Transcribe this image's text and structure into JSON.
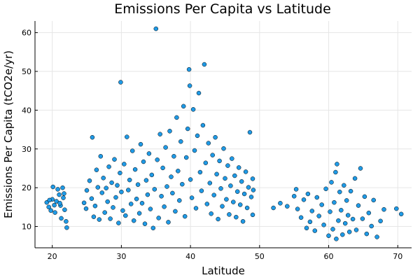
{
  "chart_data": {
    "type": "scatter",
    "title": "Emissions Per Capita vs Latitude",
    "xlabel": "Latitude",
    "ylabel": "Emissions Per Capita (tCO2e/yr)",
    "xlim": [
      17.5,
      72
    ],
    "ylim": [
      4.5,
      63
    ],
    "xticks": [
      20,
      30,
      40,
      50,
      60,
      70
    ],
    "yticks": [
      10,
      20,
      30,
      40,
      50,
      60
    ],
    "grid": true,
    "legend": "none",
    "point_color": "#1f9ae6",
    "series": [
      {
        "points": [
          [
            19.2,
            16.2
          ],
          [
            19.5,
            15.0
          ],
          [
            19.8,
            14.1
          ],
          [
            20.0,
            17.0
          ],
          [
            20.1,
            20.2
          ],
          [
            20.4,
            13.6
          ],
          [
            20.6,
            16.5
          ],
          [
            20.8,
            19.6
          ],
          [
            21.0,
            18.2
          ],
          [
            21.2,
            15.4
          ],
          [
            21.3,
            12.1
          ],
          [
            21.5,
            20.0
          ],
          [
            21.6,
            17.4
          ],
          [
            21.8,
            14.3
          ],
          [
            22.0,
            11.3
          ],
          [
            22.1,
            9.7
          ],
          [
            21.1,
            16.0
          ],
          [
            20.3,
            15.5
          ],
          [
            21.7,
            18.5
          ],
          [
            19.6,
            16.8
          ],
          [
            24.6,
            16.1
          ],
          [
            24.9,
            14.6
          ],
          [
            25.0,
            19.3
          ],
          [
            25.4,
            21.8
          ],
          [
            25.7,
            17.2
          ],
          [
            25.8,
            33.0
          ],
          [
            26.0,
            12.5
          ],
          [
            26.2,
            15.3
          ],
          [
            26.4,
            24.6
          ],
          [
            26.6,
            20.1
          ],
          [
            26.8,
            11.8
          ],
          [
            27.0,
            28.1
          ],
          [
            27.2,
            18.7
          ],
          [
            27.4,
            22.5
          ],
          [
            27.6,
            13.6
          ],
          [
            27.8,
            19.9
          ],
          [
            28.0,
            16.4
          ],
          [
            28.2,
            25.4
          ],
          [
            28.4,
            12.0
          ],
          [
            28.6,
            21.3
          ],
          [
            28.8,
            14.9
          ],
          [
            29.0,
            27.3
          ],
          [
            29.2,
            17.5
          ],
          [
            29.4,
            20.6
          ],
          [
            29.6,
            10.9
          ],
          [
            29.8,
            23.8
          ],
          [
            29.9,
            47.2
          ],
          [
            30.0,
            18.9
          ],
          [
            30.2,
            14.1
          ],
          [
            30.4,
            26.1
          ],
          [
            30.6,
            12.8
          ],
          [
            30.8,
            33.1
          ],
          [
            31.0,
            19.4
          ],
          [
            31.2,
            22.0
          ],
          [
            31.4,
            15.8
          ],
          [
            31.6,
            29.5
          ],
          [
            31.8,
            11.5
          ],
          [
            32.0,
            24.7
          ],
          [
            32.2,
            17.1
          ],
          [
            32.4,
            20.8
          ],
          [
            32.6,
            13.4
          ],
          [
            32.8,
            31.2
          ],
          [
            33.0,
            16.0
          ],
          [
            33.2,
            26.7
          ],
          [
            33.4,
            10.7
          ],
          [
            33.6,
            21.9
          ],
          [
            33.8,
            18.2
          ],
          [
            34.0,
            28.8
          ],
          [
            34.2,
            14.5
          ],
          [
            34.4,
            23.3
          ],
          [
            34.6,
            9.6
          ],
          [
            34.8,
            19.6
          ],
          [
            35.0,
            61.0
          ],
          [
            35.2,
            27.2
          ],
          [
            35.4,
            12.2
          ],
          [
            35.6,
            33.8
          ],
          [
            35.8,
            17.8
          ],
          [
            36.0,
            25.1
          ],
          [
            36.2,
            15.1
          ],
          [
            36.4,
            30.4
          ],
          [
            36.6,
            20.3
          ],
          [
            36.8,
            11.1
          ],
          [
            37.0,
            34.6
          ],
          [
            37.2,
            22.8
          ],
          [
            37.4,
            18.6
          ],
          [
            37.6,
            28.1
          ],
          [
            37.8,
            13.9
          ],
          [
            38.0,
            38.1
          ],
          [
            38.2,
            24.3
          ],
          [
            38.4,
            16.7
          ],
          [
            38.6,
            31.9
          ],
          [
            38.8,
            20.9
          ],
          [
            39.0,
            41.0
          ],
          [
            39.2,
            12.6
          ],
          [
            39.4,
            27.8
          ],
          [
            39.6,
            35.2
          ],
          [
            39.8,
            50.5
          ],
          [
            39.9,
            46.3
          ],
          [
            40.0,
            22.1
          ],
          [
            40.2,
            17.4
          ],
          [
            40.4,
            40.2
          ],
          [
            40.6,
            29.6
          ],
          [
            40.8,
            14.7
          ],
          [
            41.0,
            33.4
          ],
          [
            41.2,
            44.4
          ],
          [
            41.4,
            24.0
          ],
          [
            41.6,
            19.2
          ],
          [
            41.8,
            36.1
          ],
          [
            42.0,
            51.8
          ],
          [
            42.2,
            26.4
          ],
          [
            42.4,
            15.8
          ],
          [
            42.6,
            31.5
          ],
          [
            42.8,
            21.2
          ],
          [
            43.0,
            13.3
          ],
          [
            43.2,
            28.4
          ],
          [
            43.4,
            18.1
          ],
          [
            43.6,
            33.0
          ],
          [
            43.8,
            23.5
          ],
          [
            44.0,
            11.9
          ],
          [
            44.2,
            26.9
          ],
          [
            44.4,
            19.8
          ],
          [
            44.6,
            15.2
          ],
          [
            44.8,
            30.1
          ],
          [
            45.0,
            22.4
          ],
          [
            45.2,
            17.0
          ],
          [
            45.4,
            25.7
          ],
          [
            45.6,
            13.1
          ],
          [
            45.8,
            20.5
          ],
          [
            46.0,
            27.5
          ],
          [
            46.2,
            16.3
          ],
          [
            46.4,
            23.1
          ],
          [
            46.6,
            12.4
          ],
          [
            46.8,
            19.0
          ],
          [
            47.0,
            25.2
          ],
          [
            47.2,
            15.6
          ],
          [
            47.4,
            21.6
          ],
          [
            47.6,
            11.3
          ],
          [
            47.8,
            18.4
          ],
          [
            48.0,
            24.1
          ],
          [
            48.2,
            14.8
          ],
          [
            48.4,
            20.1
          ],
          [
            48.6,
            34.3
          ],
          [
            48.8,
            17.6
          ],
          [
            49.0,
            13.0
          ],
          [
            49.1,
            19.4
          ],
          [
            49.0,
            22.3
          ],
          [
            52.0,
            14.8
          ],
          [
            53.0,
            16.0
          ],
          [
            54.0,
            15.2
          ],
          [
            55.0,
            17.8
          ],
          [
            55.3,
            19.6
          ],
          [
            55.5,
            14.5
          ],
          [
            56.0,
            12.3
          ],
          [
            56.4,
            16.9
          ],
          [
            56.8,
            9.6
          ],
          [
            57.0,
            18.4
          ],
          [
            57.3,
            11.2
          ],
          [
            57.6,
            14.0
          ],
          [
            58.0,
            8.9
          ],
          [
            58.3,
            17.5
          ],
          [
            58.6,
            12.7
          ],
          [
            59.0,
            15.6
          ],
          [
            59.3,
            10.4
          ],
          [
            59.6,
            19.7
          ],
          [
            60.0,
            7.6
          ],
          [
            60.2,
            13.8
          ],
          [
            60.4,
            21.4
          ],
          [
            60.6,
            9.3
          ],
          [
            60.8,
            16.2
          ],
          [
            61.0,
            24.0
          ],
          [
            61.1,
            6.8
          ],
          [
            61.2,
            26.1
          ],
          [
            61.4,
            11.5
          ],
          [
            61.6,
            18.9
          ],
          [
            61.8,
            14.2
          ],
          [
            62.0,
            7.9
          ],
          [
            62.2,
            20.6
          ],
          [
            62.4,
            10.8
          ],
          [
            62.6,
            16.7
          ],
          [
            62.8,
            12.9
          ],
          [
            63.0,
            8.6
          ],
          [
            63.2,
            19.1
          ],
          [
            63.5,
            11.9
          ],
          [
            63.8,
            22.4
          ],
          [
            64.0,
            9.1
          ],
          [
            64.3,
            15.4
          ],
          [
            64.6,
            25.0
          ],
          [
            64.9,
            12.0
          ],
          [
            65.2,
            17.7
          ],
          [
            65.5,
            8.1
          ],
          [
            65.8,
            13.5
          ],
          [
            66.2,
            10.1
          ],
          [
            66.5,
            16.8
          ],
          [
            67.0,
            7.3
          ],
          [
            67.5,
            11.4
          ],
          [
            68.0,
            14.4
          ],
          [
            69.8,
            14.6
          ],
          [
            70.5,
            13.2
          ]
        ]
      }
    ]
  }
}
